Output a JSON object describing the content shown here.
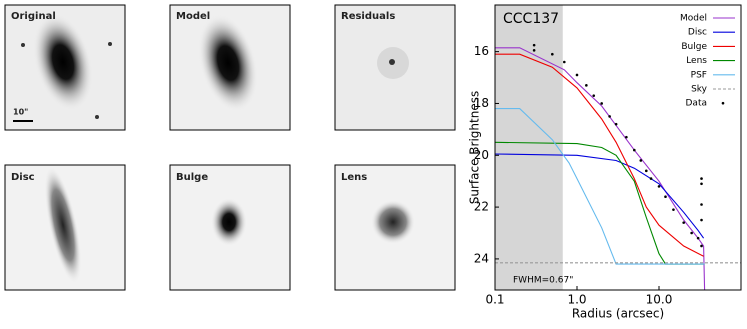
{
  "panels": [
    {
      "label": "Original",
      "scale_label": "10\""
    },
    {
      "label": "Model"
    },
    {
      "label": "Residuals"
    },
    {
      "label": "Disc"
    },
    {
      "label": "Bulge"
    },
    {
      "label": "Lens"
    }
  ],
  "chart_data": {
    "type": "line",
    "title": "CCC137",
    "x_label": "Radius (arcsec)",
    "y_label": "Surface Brightness",
    "annotation": "FWHM=0.67\"",
    "shade_x": [
      0.1,
      0.67
    ],
    "log_x": true,
    "xlim": [
      0.1,
      100
    ],
    "ylim": [
      25.2,
      14.2
    ],
    "xticks": [
      0.1,
      {
        "value": 1,
        "label": "1.0"
      },
      {
        "value": 10,
        "label": "10.0"
      }
    ],
    "yticks": [
      16,
      18,
      20,
      22,
      24
    ],
    "legend": "upper right",
    "series": [
      {
        "name": "Model",
        "color": "#9933cc",
        "style": "solid",
        "x": [
          0.1,
          0.2,
          0.7,
          1,
          2,
          5,
          10,
          20,
          30,
          35,
          36
        ],
        "values": [
          15.85,
          15.85,
          16.7,
          17.2,
          18.1,
          19.8,
          21.0,
          22.5,
          23.2,
          23.5,
          25.2
        ]
      },
      {
        "name": "Disc",
        "color": "#0000dd",
        "style": "solid",
        "x": [
          0.1,
          1,
          3,
          5,
          10,
          20,
          30,
          35
        ],
        "values": [
          19.95,
          20.0,
          20.2,
          20.5,
          21.1,
          22.2,
          22.9,
          23.2
        ]
      },
      {
        "name": "Bulge",
        "color": "#ee0000",
        "style": "solid",
        "x": [
          0.1,
          0.2,
          0.5,
          1,
          2,
          3,
          5,
          7,
          10,
          20,
          35
        ],
        "values": [
          16.1,
          16.1,
          16.6,
          17.4,
          18.6,
          19.5,
          20.9,
          22.0,
          22.7,
          23.5,
          23.9
        ]
      },
      {
        "name": "Lens",
        "color": "#008800",
        "style": "solid",
        "x": [
          0.1,
          1,
          2,
          3,
          5,
          7,
          10,
          12,
          36
        ],
        "values": [
          19.5,
          19.55,
          19.7,
          20.0,
          21.0,
          22.4,
          23.8,
          24.2,
          24.2
        ]
      },
      {
        "name": "PSF",
        "color": "#66bbee",
        "style": "solid",
        "x": [
          0.1,
          0.2,
          0.5,
          0.8,
          1,
          2,
          3,
          36
        ],
        "values": [
          18.2,
          18.2,
          19.4,
          20.3,
          20.9,
          22.8,
          24.2,
          24.2
        ]
      },
      {
        "name": "Sky",
        "color": "#999999",
        "style": "dashed",
        "x": [
          0.1,
          100
        ],
        "values": [
          24.15,
          24.15
        ]
      },
      {
        "name": "Data",
        "color": "#000000",
        "style": "points",
        "x": [
          0.3,
          0.3,
          0.5,
          0.7,
          1.0,
          1.3,
          1.6,
          2,
          2.5,
          3,
          4,
          5,
          6,
          7,
          8,
          10,
          12,
          15,
          20,
          25,
          30,
          33,
          33,
          33,
          33,
          33
        ],
        "values": [
          15.75,
          15.95,
          16.1,
          16.4,
          16.9,
          17.3,
          17.7,
          18.0,
          18.5,
          18.8,
          19.3,
          19.8,
          20.2,
          20.6,
          20.9,
          21.2,
          21.6,
          22.1,
          22.6,
          23.0,
          23.2,
          20.9,
          21.1,
          21.9,
          22.5,
          23.5
        ]
      }
    ]
  }
}
